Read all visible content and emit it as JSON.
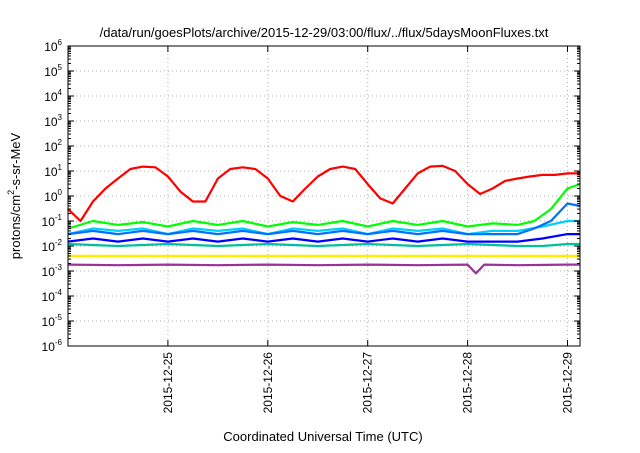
{
  "chart_data": {
    "type": "line",
    "title": "/data/run/goesPlots/archive/2015-12-29/03:00/flux/../flux/5daysMoonFluxes.txt",
    "xlabel": "Coordinated Universal Time (UTC)",
    "ylabel": {
      "base": "protons/cm",
      "sup": "2",
      "rest": "-s-sr-MeV"
    },
    "y_scale": "log",
    "ylim": [
      1e-06,
      1000000.0
    ],
    "y_ticks": [
      {
        "base": "10",
        "exp": "-6"
      },
      {
        "base": "10",
        "exp": "-5"
      },
      {
        "base": "10",
        "exp": "-4"
      },
      {
        "base": "10",
        "exp": "-3"
      },
      {
        "base": "10",
        "exp": "-2"
      },
      {
        "base": "10",
        "exp": "-1"
      },
      {
        "base": "10",
        "exp": "0"
      },
      {
        "base": "10",
        "exp": "1"
      },
      {
        "base": "10",
        "exp": "2"
      },
      {
        "base": "10",
        "exp": "3"
      },
      {
        "base": "10",
        "exp": "4"
      },
      {
        "base": "10",
        "exp": "5"
      },
      {
        "base": "10",
        "exp": "6"
      }
    ],
    "x_ticks": [
      "2015-12-25",
      "2015-12-26",
      "2015-12-27",
      "2015-12-28",
      "2015-12-29"
    ],
    "grid": true,
    "xlim": [
      "2015-12-24 00:00",
      "2015-12-29 03:00"
    ],
    "series": [
      {
        "color": "#ff0000",
        "x": [
          "2015-12-24 00:00",
          "2015-12-24 03:00",
          "2015-12-24 06:00",
          "2015-12-24 09:00",
          "2015-12-24 12:00",
          "2015-12-24 15:00",
          "2015-12-24 18:00",
          "2015-12-24 21:00",
          "2015-12-25 00:00",
          "2015-12-25 03:00",
          "2015-12-25 06:00",
          "2015-12-25 09:00",
          "2015-12-25 12:00",
          "2015-12-25 15:00",
          "2015-12-25 18:00",
          "2015-12-25 21:00",
          "2015-12-26 00:00",
          "2015-12-26 03:00",
          "2015-12-26 06:00",
          "2015-12-26 09:00",
          "2015-12-26 12:00",
          "2015-12-26 15:00",
          "2015-12-26 18:00",
          "2015-12-26 21:00",
          "2015-12-27 00:00",
          "2015-12-27 03:00",
          "2015-12-27 06:00",
          "2015-12-27 09:00",
          "2015-12-27 12:00",
          "2015-12-27 15:00",
          "2015-12-27 18:00",
          "2015-12-27 21:00",
          "2015-12-28 00:00",
          "2015-12-28 03:00",
          "2015-12-28 06:00",
          "2015-12-28 09:00",
          "2015-12-28 12:00",
          "2015-12-28 15:00",
          "2015-12-28 18:00",
          "2015-12-28 21:00",
          "2015-12-29 00:00",
          "2015-12-29 03:00"
        ],
        "y": [
          0.3,
          0.1,
          0.6,
          2.0,
          5,
          12,
          15,
          14,
          6,
          1.5,
          0.6,
          0.6,
          5,
          12,
          14,
          12,
          5,
          1.0,
          0.6,
          2,
          6,
          12,
          15,
          12,
          3,
          0.8,
          0.5,
          2,
          8,
          15,
          16,
          10,
          3,
          1.2,
          2,
          4,
          5,
          6,
          7,
          7,
          8,
          8
        ]
      },
      {
        "color": "#00ff00",
        "x": [
          "2015-12-24 00:00",
          "2015-12-24 06:00",
          "2015-12-24 12:00",
          "2015-12-24 18:00",
          "2015-12-25 00:00",
          "2015-12-25 06:00",
          "2015-12-25 12:00",
          "2015-12-25 18:00",
          "2015-12-26 00:00",
          "2015-12-26 06:00",
          "2015-12-26 12:00",
          "2015-12-26 18:00",
          "2015-12-27 00:00",
          "2015-12-27 06:00",
          "2015-12-27 12:00",
          "2015-12-27 18:00",
          "2015-12-28 00:00",
          "2015-12-28 06:00",
          "2015-12-28 12:00",
          "2015-12-28 16:00",
          "2015-12-28 20:00",
          "2015-12-29 00:00",
          "2015-12-29 03:00"
        ],
        "y": [
          0.05,
          0.1,
          0.07,
          0.09,
          0.06,
          0.1,
          0.07,
          0.1,
          0.06,
          0.09,
          0.07,
          0.1,
          0.06,
          0.1,
          0.07,
          0.1,
          0.06,
          0.08,
          0.07,
          0.1,
          0.3,
          2,
          3
        ]
      },
      {
        "color": "#00d0ff",
        "x": [
          "2015-12-24 00:00",
          "2015-12-24 06:00",
          "2015-12-24 12:00",
          "2015-12-24 18:00",
          "2015-12-25 00:00",
          "2015-12-25 06:00",
          "2015-12-25 12:00",
          "2015-12-25 18:00",
          "2015-12-26 00:00",
          "2015-12-26 06:00",
          "2015-12-26 12:00",
          "2015-12-26 18:00",
          "2015-12-27 00:00",
          "2015-12-27 06:00",
          "2015-12-27 12:00",
          "2015-12-27 18:00",
          "2015-12-28 00:00",
          "2015-12-28 06:00",
          "2015-12-28 12:00",
          "2015-12-28 18:00",
          "2015-12-29 00:00",
          "2015-12-29 03:00"
        ],
        "y": [
          0.03,
          0.05,
          0.04,
          0.05,
          0.03,
          0.05,
          0.04,
          0.05,
          0.03,
          0.05,
          0.04,
          0.05,
          0.03,
          0.05,
          0.04,
          0.05,
          0.03,
          0.04,
          0.04,
          0.06,
          0.1,
          0.1
        ]
      },
      {
        "color": "#0070ff",
        "x": [
          "2015-12-24 00:00",
          "2015-12-24 06:00",
          "2015-12-24 12:00",
          "2015-12-24 18:00",
          "2015-12-25 00:00",
          "2015-12-25 06:00",
          "2015-12-25 12:00",
          "2015-12-25 18:00",
          "2015-12-26 00:00",
          "2015-12-26 06:00",
          "2015-12-26 12:00",
          "2015-12-26 18:00",
          "2015-12-27 00:00",
          "2015-12-27 06:00",
          "2015-12-27 12:00",
          "2015-12-27 18:00",
          "2015-12-28 00:00",
          "2015-12-28 06:00",
          "2015-12-28 12:00",
          "2015-12-28 16:00",
          "2015-12-28 20:00",
          "2015-12-29 00:00",
          "2015-12-29 03:00"
        ],
        "y": [
          0.03,
          0.04,
          0.03,
          0.04,
          0.03,
          0.04,
          0.03,
          0.04,
          0.03,
          0.04,
          0.03,
          0.04,
          0.03,
          0.04,
          0.03,
          0.04,
          0.03,
          0.03,
          0.03,
          0.05,
          0.1,
          0.5,
          0.4
        ]
      },
      {
        "color": "#0000ff",
        "x": [
          "2015-12-24 00:00",
          "2015-12-24 06:00",
          "2015-12-24 12:00",
          "2015-12-24 18:00",
          "2015-12-25 00:00",
          "2015-12-25 06:00",
          "2015-12-25 12:00",
          "2015-12-25 18:00",
          "2015-12-26 00:00",
          "2015-12-26 06:00",
          "2015-12-26 12:00",
          "2015-12-26 18:00",
          "2015-12-27 00:00",
          "2015-12-27 06:00",
          "2015-12-27 12:00",
          "2015-12-27 18:00",
          "2015-12-28 00:00",
          "2015-12-28 06:00",
          "2015-12-28 12:00",
          "2015-12-28 18:00",
          "2015-12-29 00:00",
          "2015-12-29 03:00"
        ],
        "y": [
          0.015,
          0.02,
          0.015,
          0.02,
          0.015,
          0.02,
          0.015,
          0.02,
          0.015,
          0.02,
          0.015,
          0.02,
          0.015,
          0.02,
          0.015,
          0.02,
          0.015,
          0.015,
          0.015,
          0.02,
          0.03,
          0.03
        ]
      },
      {
        "color": "#00c0a0",
        "x": [
          "2015-12-24 00:00",
          "2015-12-24 12:00",
          "2015-12-25 00:00",
          "2015-12-25 12:00",
          "2015-12-26 00:00",
          "2015-12-26 12:00",
          "2015-12-27 00:00",
          "2015-12-27 12:00",
          "2015-12-28 00:00",
          "2015-12-28 12:00",
          "2015-12-28 18:00",
          "2015-12-29 00:00",
          "2015-12-29 03:00"
        ],
        "y": [
          0.012,
          0.01,
          0.012,
          0.01,
          0.012,
          0.01,
          0.012,
          0.01,
          0.012,
          0.01,
          0.01,
          0.012,
          0.012
        ]
      },
      {
        "color": "#ffee00",
        "x": [
          "2015-12-24 00:00",
          "2015-12-24 12:00",
          "2015-12-25 00:00",
          "2015-12-25 12:00",
          "2015-12-26 00:00",
          "2015-12-26 12:00",
          "2015-12-27 00:00",
          "2015-12-27 12:00",
          "2015-12-28 00:00",
          "2015-12-28 12:00",
          "2015-12-29 00:00",
          "2015-12-29 03:00"
        ],
        "y": [
          0.004,
          0.004,
          0.004,
          0.004,
          0.004,
          0.004,
          0.004,
          0.004,
          0.004,
          0.004,
          0.004,
          0.004
        ]
      },
      {
        "color": "#993399",
        "x": [
          "2015-12-24 00:00",
          "2015-12-24 12:00",
          "2015-12-25 00:00",
          "2015-12-25 12:00",
          "2015-12-26 00:00",
          "2015-12-26 12:00",
          "2015-12-27 00:00",
          "2015-12-27 12:00",
          "2015-12-28 00:00",
          "2015-12-28 02:00",
          "2015-12-28 04:00",
          "2015-12-28 12:00",
          "2015-12-29 00:00",
          "2015-12-29 03:00"
        ],
        "y": [
          0.0018,
          0.0017,
          0.0018,
          0.0017,
          0.0018,
          0.0017,
          0.0018,
          0.0017,
          0.0018,
          0.0008,
          0.0018,
          0.0017,
          0.0018,
          0.0018
        ]
      }
    ]
  }
}
